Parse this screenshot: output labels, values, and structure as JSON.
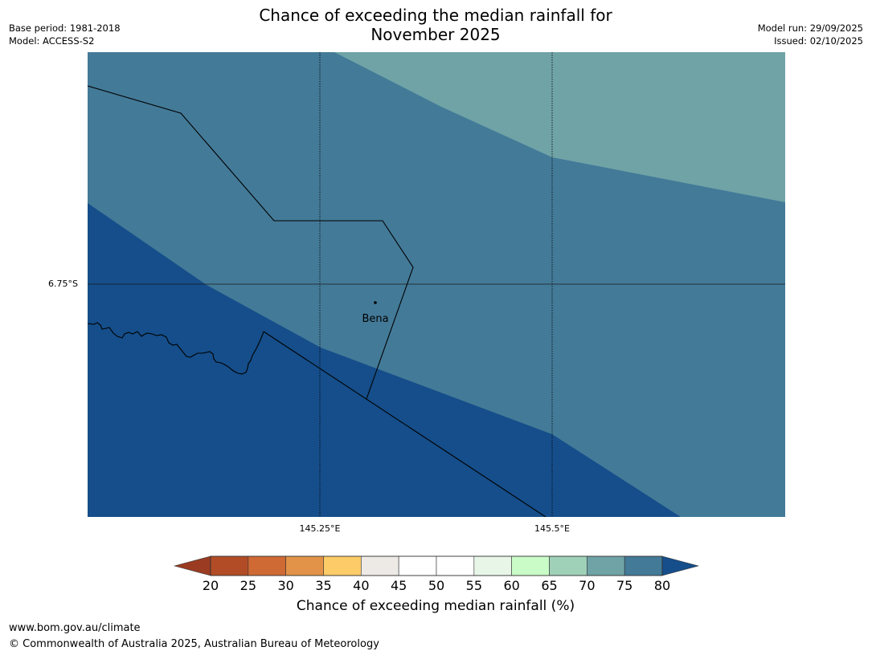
{
  "title_line1": "Chance of exceeding the median rainfall for",
  "title_line2": "November 2025",
  "meta_left": {
    "base_period": "Base period: 1981-2018",
    "model": "Model: ACCESS-S2"
  },
  "meta_right": {
    "model_run": "Model run: 29/09/2025",
    "issued": "Issued: 02/10/2025"
  },
  "map": {
    "lat_label": "6.75°S",
    "lon_labels": [
      "145.25°E",
      "145.5°E"
    ],
    "place": "Bena",
    "region_colors": {
      "band_70_75": "#6FA3A6",
      "band_75_80": "#437A98",
      "band_80_plus": "#154E8A"
    }
  },
  "colorbar": {
    "ticks": [
      "20",
      "25",
      "30",
      "35",
      "40",
      "45",
      "50",
      "55",
      "60",
      "65",
      "70",
      "75",
      "80"
    ],
    "under_color": "#9A3B22",
    "colors": [
      "#B24C26",
      "#CF6A34",
      "#E29348",
      "#FDCB67",
      "#EDE9E5",
      "#FFFFFF",
      "#FFFFFF",
      "#E8F6E8",
      "#C9FCC7",
      "#9FD0B8",
      "#6FA3A6",
      "#437A98"
    ],
    "over_color": "#154E8A",
    "label": "Chance of exceeding median rainfall (%)"
  },
  "footer": {
    "url": "www.bom.gov.au/climate",
    "copyright": "© Commonwealth of Australia 2025, Australian Bureau of Meteorology"
  }
}
